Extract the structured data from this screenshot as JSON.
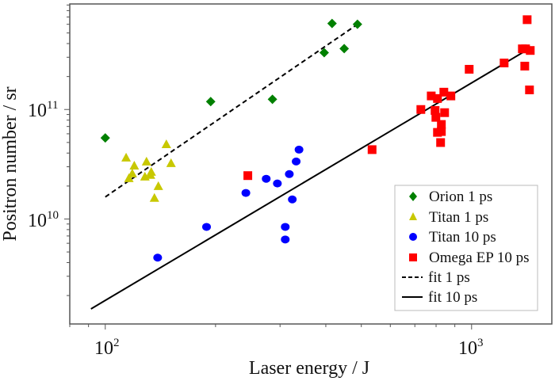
{
  "chart_data": {
    "type": "scatter",
    "title": "",
    "xlabel": "Laser energy / J",
    "ylabel": "Positron number / sr",
    "xscale": "log",
    "yscale": "log",
    "xlim": [
      80,
      1656
    ],
    "ylim": [
      1100000000.0,
      920000000000.0
    ],
    "x_ticks": [
      {
        "base": "10",
        "exp": "2",
        "value": 100
      },
      {
        "base": "10",
        "exp": "3",
        "value": 1000
      }
    ],
    "y_ticks": [
      {
        "base": "10",
        "exp": "10",
        "value": 10000000000.0
      },
      {
        "base": "10",
        "exp": "11",
        "value": 100000000000.0
      }
    ],
    "grid": false,
    "legend_position": "bottom-right",
    "series": [
      {
        "name": "Orion 1 ps",
        "marker": "diamond",
        "color": "#008000",
        "points": [
          [
            100,
            55000000000.0
          ],
          [
            194,
            118000000000.0
          ],
          [
            286,
            124000000000.0
          ],
          [
            396,
            330000000000.0
          ],
          [
            416,
            610000000000.0
          ],
          [
            449,
            360000000000.0
          ],
          [
            488,
            600000000000.0
          ]
        ]
      },
      {
        "name": "Titan 1 ps",
        "marker": "triangle",
        "color": "#c8c800",
        "points": [
          [
            114,
            36400000000.0
          ],
          [
            120,
            30800000000.0
          ],
          [
            118.5,
            26100000000.0
          ],
          [
            116,
            23600000000.0
          ],
          [
            129.6,
            33500000000.0
          ],
          [
            128.3,
            24400000000.0
          ],
          [
            133.5,
            27000000000.0
          ],
          [
            132.9,
            25300000000.0
          ],
          [
            146.8,
            48200000000.0
          ],
          [
            151.2,
            32400000000.0
          ],
          [
            139.6,
            20000000000.0
          ],
          [
            136.2,
            15600000000.0
          ]
        ]
      },
      {
        "name": "Titan 10 ps",
        "marker": "circle",
        "color": "#0000ff",
        "points": [
          [
            139,
            4440000000.0
          ],
          [
            189,
            8470000000.0
          ],
          [
            242,
            17300000000.0
          ],
          [
            275,
            23300000000.0
          ],
          [
            295,
            21100000000.0
          ],
          [
            318,
            25700000000.0
          ],
          [
            324,
            15100000000.0
          ],
          [
            332,
            33500000000.0
          ],
          [
            338,
            43000000000.0
          ],
          [
            310,
            8470000000.0
          ],
          [
            310,
            6500000000.0
          ]
        ]
      },
      {
        "name": "Omega EP 10 ps",
        "marker": "square",
        "color": "#ff0000",
        "points": [
          [
            245,
            24900000000.0
          ],
          [
            535,
            43000000000.0
          ],
          [
            727,
            100000000000.0
          ],
          [
            776,
            133000000000.0
          ],
          [
            807,
            126000000000.0
          ],
          [
            840,
            144000000000.0
          ],
          [
            878,
            133000000000.0
          ],
          [
            795,
            98000000000.0
          ],
          [
            799,
            84800000000.0
          ],
          [
            844,
            93600000000.0
          ],
          [
            827,
            73000000000.0
          ],
          [
            827,
            62900000000.0
          ],
          [
            807,
            61800000000.0
          ],
          [
            823,
            49900000000.0
          ],
          [
            985,
            233000000000.0
          ],
          [
            1227,
            266000000000.0
          ],
          [
            1376,
            358000000000.0
          ],
          [
            1404,
            358000000000.0
          ],
          [
            1446,
            346000000000.0
          ],
          [
            1397,
            249000000000.0
          ],
          [
            1418,
            661000000000.0
          ],
          [
            1439,
            151000000000.0
          ]
        ]
      }
    ],
    "fits": [
      {
        "name": "fit 1 ps",
        "style": "dashed",
        "color": "#000000",
        "points": [
          [
            100,
            15900000000.0
          ],
          [
            481,
            580000000000.0
          ]
        ]
      },
      {
        "name": "fit 10 ps",
        "style": "solid",
        "color": "#000000",
        "points": [
          [
            91.4,
            1510000000.0
          ],
          [
            1446,
            364000000000.0
          ]
        ]
      }
    ]
  }
}
